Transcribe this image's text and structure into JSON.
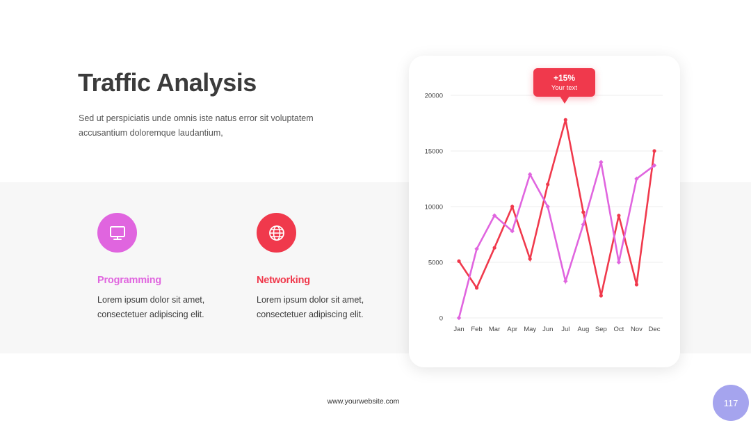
{
  "slide": {
    "title": "Traffic Analysis",
    "subtitle": "Sed ut perspiciatis unde omnis iste natus error sit voluptatem accusantium doloremque laudantium,",
    "footer_url": "www.yourwebsite.com",
    "page_number": "117"
  },
  "features": [
    {
      "title": "Programming",
      "text": "Lorem ipsum dolor sit amet, consectetuer adipiscing elit.",
      "icon": "monitor-icon",
      "color": "#e065df"
    },
    {
      "title": "Networking",
      "text": "Lorem ipsum dolor sit amet, consectetuer adipiscing elit.",
      "icon": "globe-icon",
      "color": "#f0394c"
    }
  ],
  "callout": {
    "value": "+15%",
    "text": "Your text"
  },
  "colors": {
    "red": "#f0394c",
    "pink": "#e065df",
    "badge": "#a5a4ee",
    "band": "#f7f7f7"
  },
  "chart_data": {
    "type": "line",
    "categories": [
      "Jan",
      "Feb",
      "Mar",
      "Apr",
      "May",
      "Jun",
      "Jul",
      "Aug",
      "Sep",
      "Oct",
      "Nov",
      "Dec"
    ],
    "yticks": [
      0,
      5000,
      10000,
      15000,
      20000
    ],
    "ylim": [
      0,
      20000
    ],
    "grid": true,
    "series": [
      {
        "color": "#f0394c",
        "values": [
          5100,
          2700,
          6300,
          10000,
          5300,
          12000,
          17800,
          9500,
          2000,
          9200,
          3000,
          15000
        ]
      },
      {
        "color": "#e065df",
        "values": [
          0,
          6200,
          9200,
          7800,
          12900,
          10000,
          3300,
          8400,
          14000,
          5000,
          12500,
          13700
        ]
      }
    ]
  }
}
